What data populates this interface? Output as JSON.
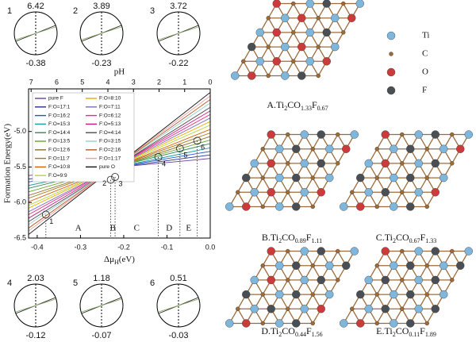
{
  "chart_data": {
    "type": "line",
    "ylabel": "Formation Energy(eV)",
    "xlabel_parts": [
      "Δμ",
      "H",
      "(eV)"
    ],
    "x2label": "pH",
    "x": [
      -0.42,
      0.0
    ],
    "xlim": [
      -0.42,
      0.0
    ],
    "xticks": [
      -0.4,
      -0.3,
      -0.2,
      -0.1,
      {
        "value": 0,
        "label": "0.0"
      }
    ],
    "ylim": [
      -6.5,
      -4.4
    ],
    "yticks": [
      -6.5,
      {
        "value": -6,
        "label": "-6.0"
      },
      -5.5,
      {
        "value": -5,
        "label": "-5.0"
      }
    ],
    "x2lim": [
      7.1,
      0
    ],
    "x2ticks": [
      7,
      6,
      5,
      4,
      3,
      2,
      1,
      0
    ],
    "legend": "upper left",
    "series": [
      {
        "name": "pure F",
        "color": "#6a3d9a",
        "values": [
          -5.62,
          -5.38
        ]
      },
      {
        "name": "F:O=17:1",
        "color": "#1f2f8f",
        "values": [
          -5.67,
          -5.33
        ]
      },
      {
        "name": "F:O=16:2",
        "color": "#2255cc",
        "values": [
          -5.71,
          -5.28
        ]
      },
      {
        "name": "F:O=15:3",
        "color": "#1b9e9e",
        "values": [
          -5.76,
          -5.23
        ]
      },
      {
        "name": "F:O=14:4",
        "color": "#2e8b57",
        "values": [
          -5.8,
          -5.17
        ]
      },
      {
        "name": "F:O=13:5",
        "color": "#66a61e",
        "values": [
          -5.85,
          -5.12
        ]
      },
      {
        "name": "F:O=12:6",
        "color": "#8c6d31",
        "values": [
          -5.9,
          -5.07
        ]
      },
      {
        "name": "F:O=11:7",
        "color": "#a6761d",
        "values": [
          -5.94,
          -5.02
        ]
      },
      {
        "name": "F:O=10:8",
        "color": "#d95f02",
        "values": [
          -5.99,
          -4.97
        ]
      },
      {
        "name": "F:O=9:9",
        "color": "#b8d33a",
        "values": [
          -6.04,
          -4.91
        ]
      },
      {
        "name": "F:O=8:10",
        "color": "#e6ab02",
        "values": [
          -6.08,
          -4.86
        ]
      },
      {
        "name": "F:O=7:11",
        "color": "#7570b3",
        "values": [
          -6.13,
          -4.81
        ]
      },
      {
        "name": "F:O=6:12",
        "color": "#e7298a",
        "values": [
          -6.17,
          -4.76
        ]
      },
      {
        "name": "F:O=5:13",
        "color": "#c51b7d",
        "values": [
          -6.22,
          -4.71
        ]
      },
      {
        "name": "F:O=4:14",
        "color": "#4d4d4d",
        "values": [
          -6.27,
          -4.66
        ]
      },
      {
        "name": "F:O=3:15",
        "color": "#8dd3c7",
        "values": [
          -6.31,
          -4.6
        ]
      },
      {
        "name": "F:O=2:16",
        "color": "#b15928",
        "values": [
          -6.36,
          -4.55
        ]
      },
      {
        "name": "F:O=1:17",
        "color": "#fb9a99",
        "values": [
          -6.4,
          -4.5
        ]
      },
      {
        "name": "pure O",
        "color": "#111111",
        "values": [
          -6.45,
          -4.45
        ]
      }
    ],
    "points": [
      {
        "label": "1",
        "x": -0.38,
        "y": -6.17,
        "ph": 6.42
      },
      {
        "label": "2",
        "x": -0.23,
        "y": -5.68,
        "ph": 3.89
      },
      {
        "label": "3",
        "x": -0.22,
        "y": -5.64,
        "ph": 3.72
      },
      {
        "label": "4",
        "x": -0.12,
        "y": -5.36,
        "ph": 2.03
      },
      {
        "label": "5",
        "x": -0.07,
        "y": -5.24,
        "ph": 1.18
      },
      {
        "label": "6",
        "x": -0.03,
        "y": -5.13,
        "ph": 0.51
      }
    ],
    "regions": [
      "A",
      "B",
      "C",
      "D",
      "E"
    ]
  },
  "structures": {
    "legend": [
      {
        "name": "Ti",
        "color": "#7fb6dc"
      },
      {
        "name": "C",
        "color": "#9c6b3a"
      },
      {
        "name": "O",
        "color": "#cc3b3b"
      },
      {
        "name": "F",
        "color": "#4a4f55"
      }
    ],
    "panels": [
      {
        "label": [
          "A.Ti",
          "2",
          "CO",
          "1.33",
          "F",
          "0.67"
        ]
      },
      {
        "label": [
          "B.Ti",
          "2",
          "CO",
          "0.89",
          "F",
          "1.11"
        ]
      },
      {
        "label": [
          "C.Ti",
          "2",
          "CO",
          "0.67",
          "F",
          "1.33"
        ]
      },
      {
        "label": [
          "D.Ti",
          "2",
          "CO",
          "0.44",
          "F",
          "1.56"
        ]
      },
      {
        "label": [
          "E.Ti",
          "2",
          "CO",
          "0.11",
          "F",
          "1.89"
        ]
      }
    ]
  }
}
